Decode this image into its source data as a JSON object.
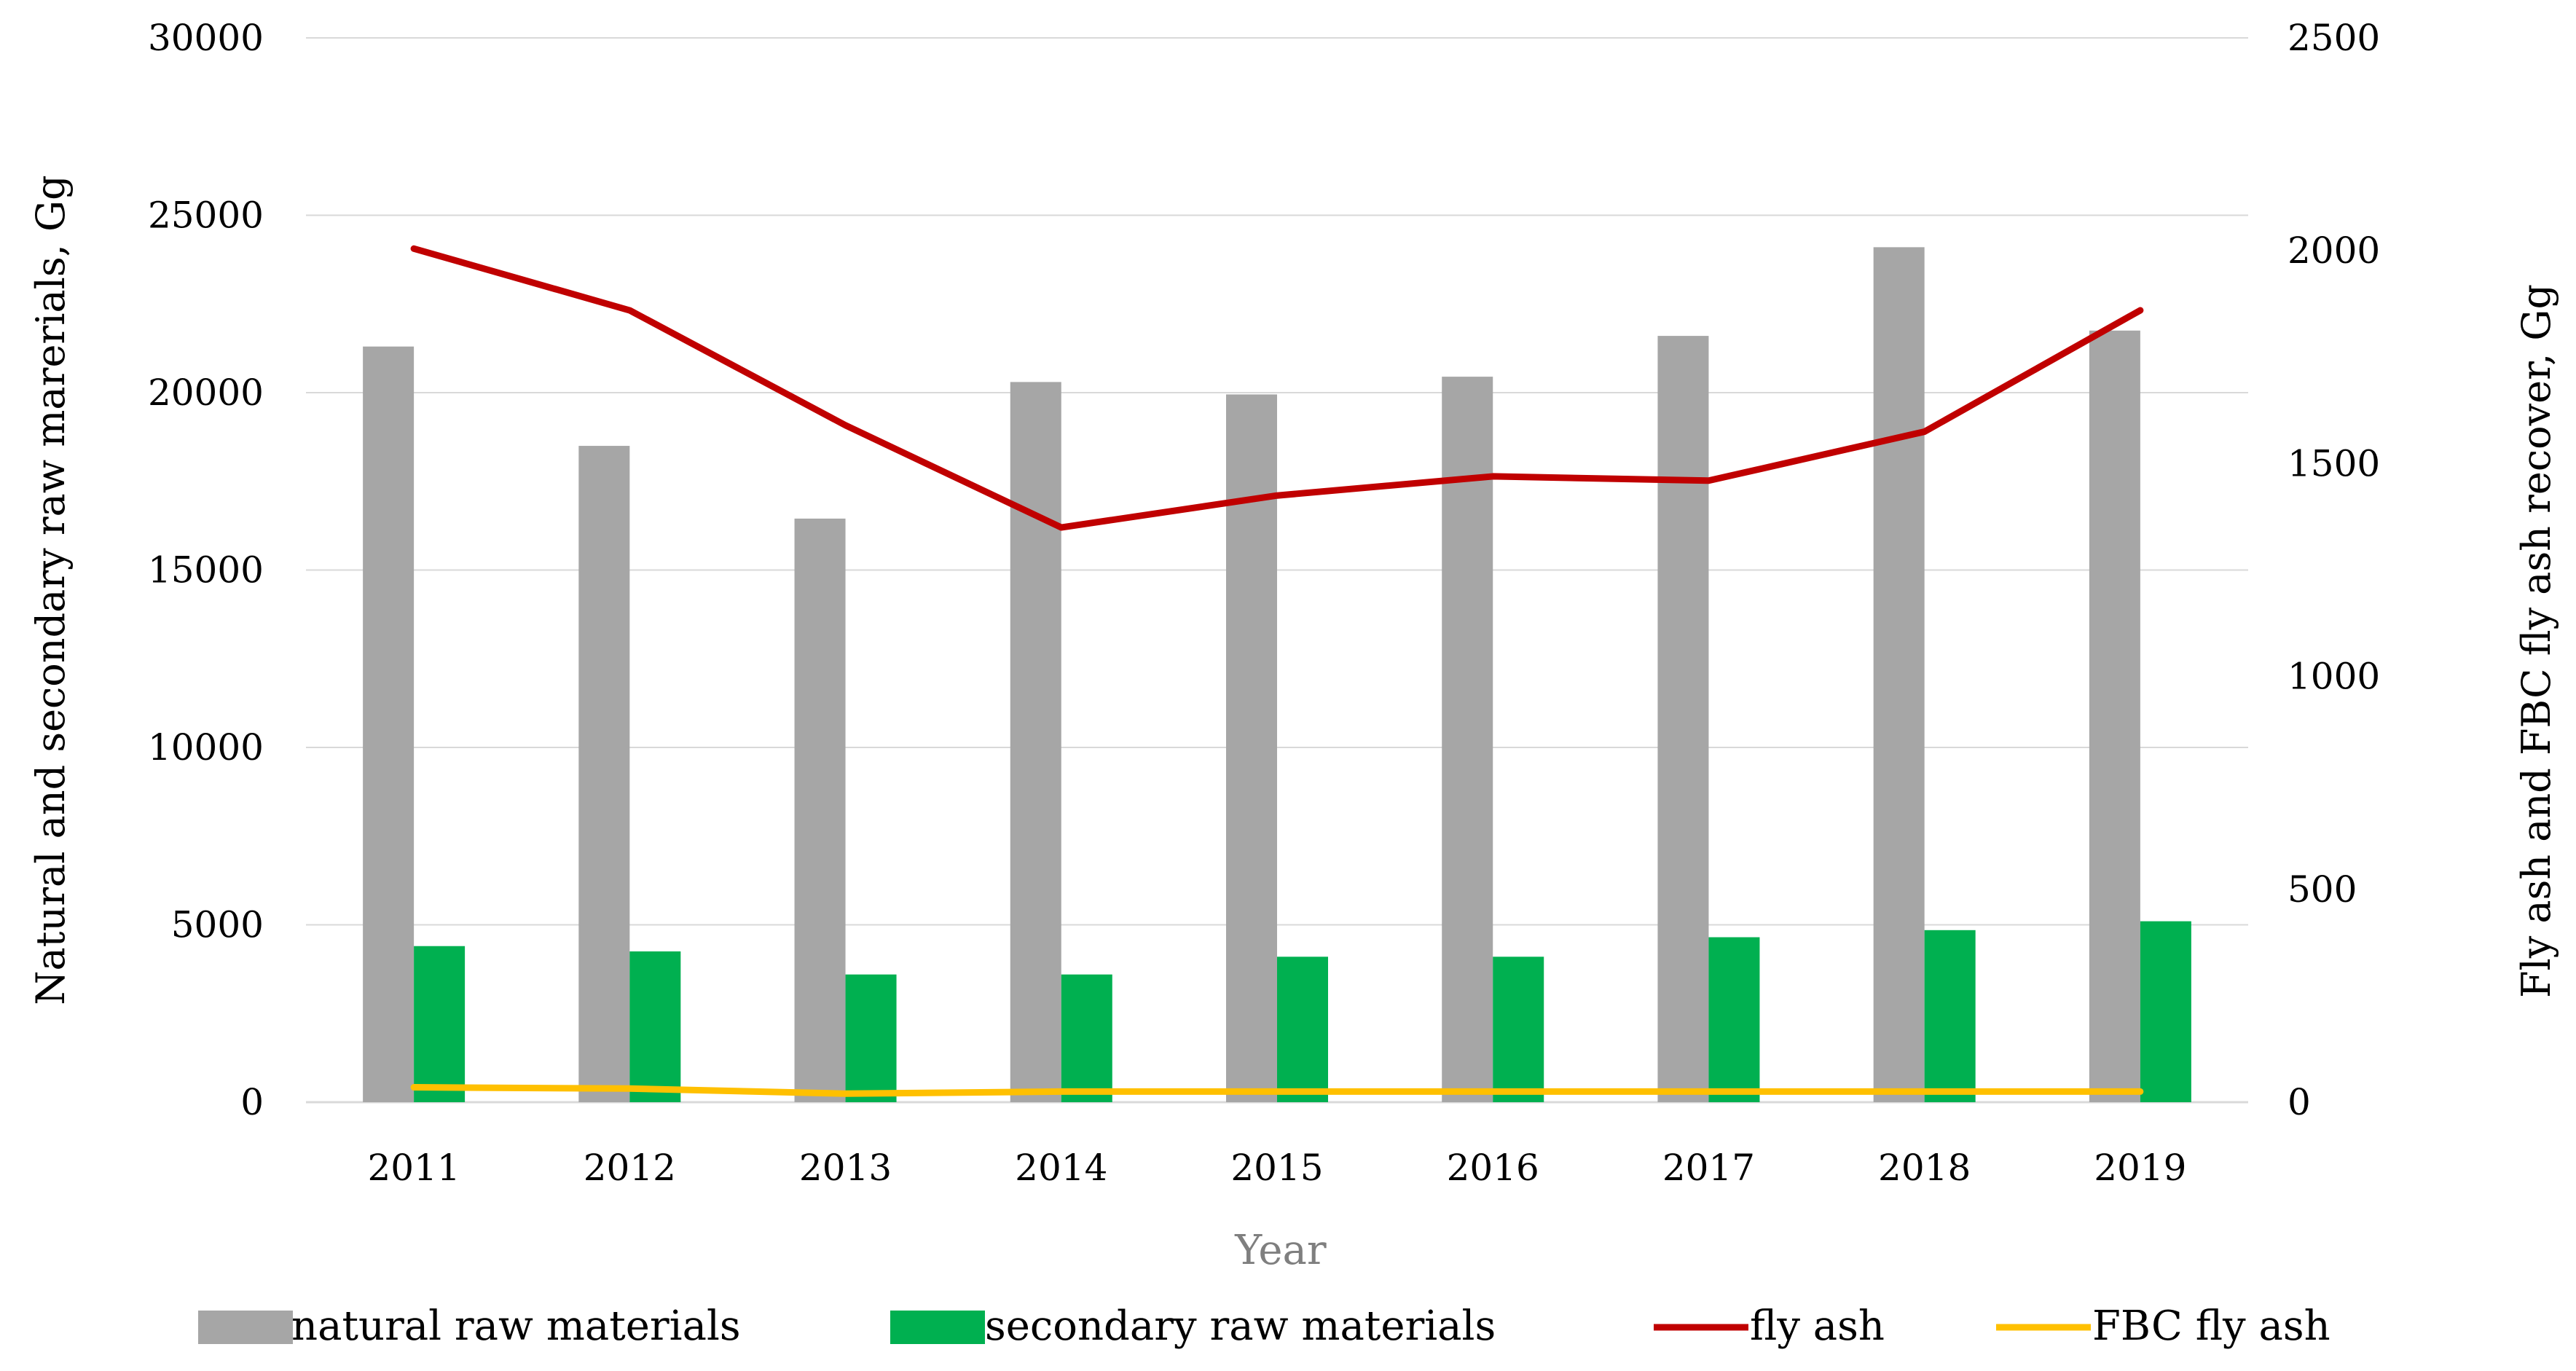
{
  "chart_data": {
    "type": "bar",
    "title": "",
    "xlabel": "Year",
    "ylabel": "Natural and secondary raw marerials, Gg",
    "y2label": "Fly ash and FBC fly ash recover, Gg",
    "categories": [
      "2011",
      "2012",
      "2013",
      "2014",
      "2015",
      "2016",
      "2017",
      "2018",
      "2019"
    ],
    "ylim": [
      0,
      30000
    ],
    "y2lim": [
      0,
      2500
    ],
    "yticks": [
      "0",
      "5000",
      "10000",
      "15000",
      "20000",
      "25000",
      "30000"
    ],
    "y2ticks": [
      "0",
      "500",
      "1000",
      "1500",
      "2000",
      "2500"
    ],
    "grid": true,
    "legend_position": "bottom",
    "series": [
      {
        "name": "natural raw materials",
        "kind": "bar",
        "axis": "left",
        "color": "#a6a6a6",
        "values": [
          21300,
          18500,
          16450,
          20300,
          19950,
          20450,
          21600,
          24100,
          21750
        ]
      },
      {
        "name": "secondary raw materials",
        "kind": "bar",
        "axis": "left",
        "color": "#00b050",
        "values": [
          4400,
          4250,
          3600,
          3600,
          4100,
          4100,
          4650,
          4850,
          5100
        ]
      },
      {
        "name": "fly ash",
        "kind": "line",
        "axis": "right",
        "color": "#c00000",
        "values": [
          2005,
          1860,
          1590,
          1350,
          1425,
          1470,
          1460,
          1575,
          1860
        ]
      },
      {
        "name": "FBC fly ash",
        "kind": "line",
        "axis": "right",
        "color": "#ffc000",
        "values": [
          35,
          32,
          20,
          25,
          25,
          25,
          25,
          25,
          25
        ]
      }
    ]
  },
  "colors": {
    "gridline": "#d9d9d9",
    "axis_title_x": "#7f7f7f"
  }
}
